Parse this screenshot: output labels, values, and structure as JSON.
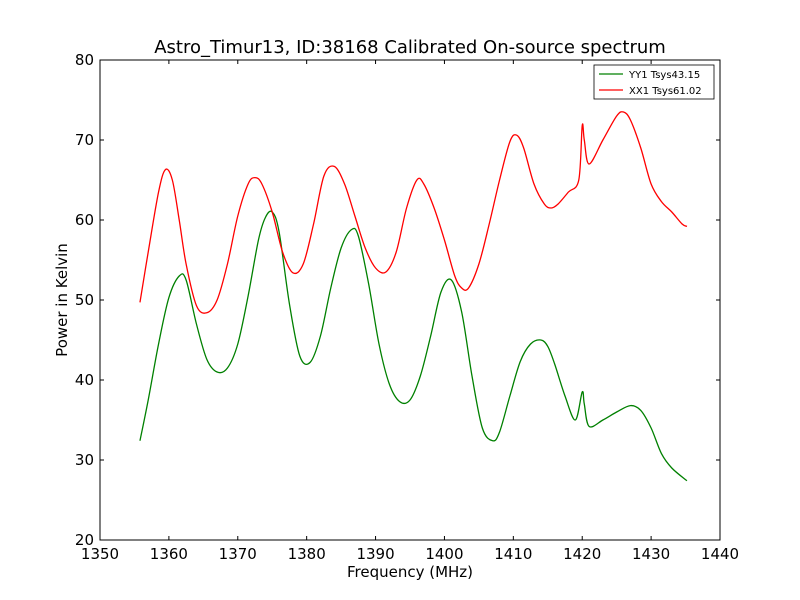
{
  "chart_data": {
    "type": "line",
    "title": "Astro_Timur13, ID:38168 Calibrated On-source spectrum",
    "xlabel": "Frequency (MHz)",
    "ylabel": "Power in Kelvin",
    "xlim": [
      1350,
      1440
    ],
    "ylim": [
      20,
      80
    ],
    "xticks": [
      1350,
      1360,
      1370,
      1380,
      1390,
      1400,
      1410,
      1420,
      1430,
      1440
    ],
    "yticks": [
      20,
      30,
      40,
      50,
      60,
      70,
      80
    ],
    "grid": false,
    "legend_position": "top-right",
    "series": [
      {
        "name": "YY1 Tsys43.15",
        "color": "#008000",
        "x": [
          1355.8,
          1357,
          1358.5,
          1360,
          1361.5,
          1362.5,
          1364,
          1365.5,
          1367,
          1368.5,
          1370,
          1371.5,
          1373,
          1374,
          1375,
          1376,
          1377.5,
          1379,
          1380.5,
          1382,
          1383.5,
          1385,
          1386.5,
          1387.5,
          1389,
          1390.5,
          1392,
          1393.5,
          1395,
          1396.5,
          1398,
          1399.5,
          1401,
          1402.5,
          1404,
          1405.5,
          1407,
          1408,
          1409.5,
          1411,
          1412.5,
          1414,
          1415,
          1416,
          1417.5,
          1419,
          1420,
          1420.3,
          1421,
          1423,
          1425,
          1427,
          1428.5,
          1430,
          1431.5,
          1433,
          1435.2
        ],
        "values": [
          32.4,
          37.5,
          44.5,
          50.3,
          53.0,
          52.5,
          47.0,
          42.6,
          41.0,
          41.5,
          44.5,
          50.5,
          57.5,
          60.3,
          61.0,
          58.5,
          49.5,
          43.0,
          42.2,
          45.5,
          51.5,
          56.5,
          58.8,
          58.0,
          52.0,
          44.5,
          39.5,
          37.3,
          37.5,
          40.5,
          45.5,
          51.0,
          52.5,
          48.5,
          40.5,
          34.0,
          32.4,
          33.5,
          38.0,
          42.3,
          44.5,
          45.0,
          44.2,
          42.0,
          38.0,
          35.0,
          38.5,
          37.0,
          34.2,
          35.0,
          36.0,
          36.8,
          36.2,
          34.0,
          30.8,
          29.0,
          27.4
        ]
      },
      {
        "name": "XX1 Tsys61.02",
        "color": "#ff0000",
        "x": [
          1355.8,
          1357,
          1358.5,
          1359.5,
          1360.5,
          1361.5,
          1362.5,
          1364,
          1365.5,
          1367,
          1368.5,
          1370,
          1371.5,
          1372.5,
          1373.5,
          1375,
          1376.5,
          1378,
          1379.5,
          1381,
          1382.5,
          1384,
          1385.5,
          1387,
          1388.5,
          1390,
          1391.5,
          1393,
          1394.5,
          1396,
          1397,
          1398.5,
          1400,
          1401.5,
          1402.5,
          1403.5,
          1405,
          1406.5,
          1408,
          1409.5,
          1410.5,
          1411.5,
          1413,
          1414.5,
          1415.5,
          1416.5,
          1418,
          1419.5,
          1420,
          1420.3,
          1421,
          1423,
          1425,
          1426,
          1427,
          1428.5,
          1430,
          1431.5,
          1433,
          1434.5,
          1435.2
        ],
        "values": [
          49.7,
          56.0,
          63.5,
          66.3,
          65.0,
          60.0,
          54.5,
          49.3,
          48.4,
          50.0,
          54.5,
          60.5,
          64.5,
          65.3,
          64.5,
          61.0,
          56.0,
          53.4,
          54.5,
          59.5,
          65.5,
          66.7,
          64.5,
          60.5,
          56.5,
          54.0,
          53.5,
          56.0,
          61.5,
          65.0,
          64.5,
          61.5,
          57.5,
          53.0,
          51.5,
          51.5,
          54.5,
          59.5,
          65.0,
          69.8,
          70.6,
          69.0,
          64.5,
          62.0,
          61.5,
          62.0,
          63.5,
          65.0,
          71.8,
          70.0,
          67.0,
          70.0,
          73.0,
          73.5,
          72.5,
          69.0,
          64.5,
          62.3,
          61.0,
          59.5,
          59.2
        ]
      }
    ]
  }
}
